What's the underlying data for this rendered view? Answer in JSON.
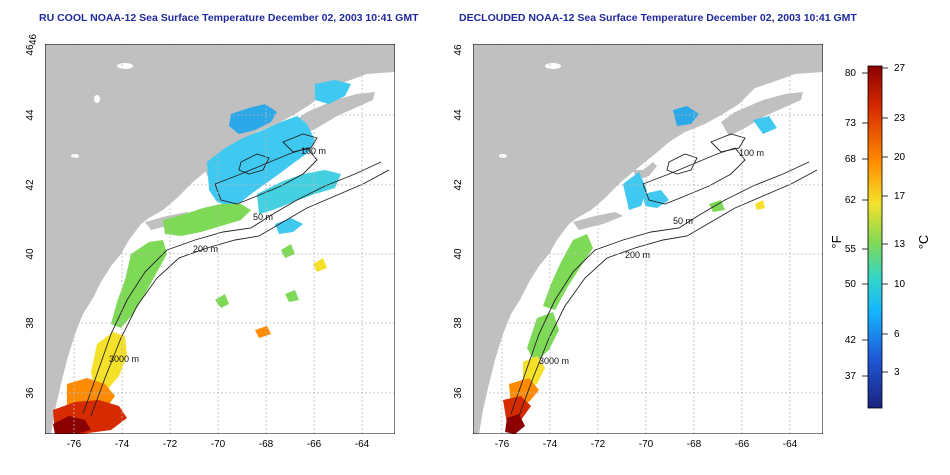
{
  "left_map": {
    "title": "RU COOL NOAA-12 Sea Surface Temperature December 02, 2003 10:41 GMT"
  },
  "right_map": {
    "title": "DECLOUDED NOAA-12 Sea Surface Temperature December 02, 2003 10:41 GMT"
  },
  "axes": {
    "lon_ticks": [
      "-76",
      "-74",
      "-72",
      "-70",
      "-68",
      "-66",
      "-64"
    ],
    "lat_ticks": [
      "36",
      "38",
      "40",
      "42",
      "44",
      "46"
    ]
  },
  "contours": {
    "label_200": "200 m",
    "label_100": "100 m",
    "label_50": "50 m",
    "label_3000": "3000 m"
  },
  "colorbar": {
    "unit_f": "°F",
    "unit_c": "°C",
    "ticks_f": [
      "80",
      "73",
      "68",
      "62",
      "55",
      "50",
      "42",
      "37"
    ],
    "ticks_c": [
      "27",
      "23",
      "20",
      "17",
      "13",
      "10",
      "6",
      "3"
    ],
    "colors": [
      "#8b0000",
      "#d62a00",
      "#ff8c00",
      "#f5e12a",
      "#7ed957",
      "#33d6c9",
      "#14b4ff",
      "#1e5bd8",
      "#1a237e"
    ]
  },
  "colors": {
    "land": "#c0c0c0",
    "ocean": "#ffffff",
    "grid": "#b9b9b9",
    "title": "#1f2a9c"
  }
}
